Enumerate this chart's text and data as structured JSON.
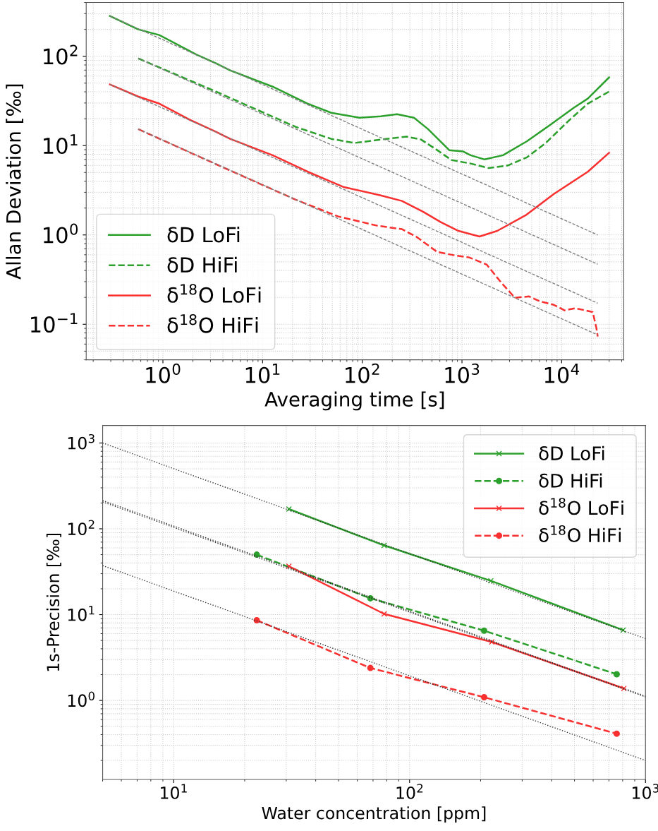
{
  "chart_data": [
    {
      "type": "line",
      "xlabel": "Averaging time [s]",
      "ylabel": "Allan Deviation [‰]",
      "log": "xy",
      "grid": true,
      "legend": "bottom left",
      "xlim": [
        0.17,
        42000
      ],
      "ylim": [
        0.04,
        400
      ],
      "xticks": [
        {
          "value": 1,
          "label": "10$^{0}$"
        },
        {
          "value": 10,
          "label": "10$^{1}$"
        },
        {
          "value": 100,
          "label": "10$^{2}$"
        },
        {
          "value": 1000,
          "label": "10$^{3}$"
        },
        {
          "value": 10000,
          "label": "10$^{4}$"
        }
      ],
      "yticks": [
        {
          "value": 0.1,
          "label": "10$^{−1}$"
        },
        {
          "value": 1,
          "label": "10$^{0}$"
        },
        {
          "value": 10,
          "label": "10$^{1}$"
        },
        {
          "value": 100,
          "label": "10$^{2}$"
        }
      ],
      "series": [
        {
          "type": "line",
          "color": "#808080",
          "line_style": "dashed",
          "x": [
            0.294,
            23000
          ],
          "values": [
            282,
            1.0
          ]
        },
        {
          "type": "line",
          "color": "#808080",
          "line_style": "dashed",
          "x": [
            0.565,
            23000
          ],
          "values": [
            94.6,
            0.47
          ]
        },
        {
          "type": "line",
          "color": "#808080",
          "line_style": "dashed",
          "x": [
            0.294,
            23000
          ],
          "values": [
            48.3,
            0.172
          ]
        },
        {
          "type": "line",
          "color": "#808080",
          "line_style": "dashed",
          "x": [
            0.565,
            23000
          ],
          "values": [
            15.3,
            0.076
          ]
        },
        {
          "type": "line",
          "name": "δD LoFi",
          "color": "#2ca02c",
          "line_style": "solid",
          "x": [
            0.294,
            0.565,
            0.92,
            2.19,
            3.4,
            4.72,
            12.6,
            28.4,
            48.8,
            93.7,
            153,
            223,
            330,
            457,
            745,
            1030,
            1220,
            1690,
            2580,
            4490,
            7700,
            13200,
            18300,
            29900
          ],
          "values": [
            282,
            200,
            173,
            104,
            83.4,
            69.5,
            45.7,
            29.5,
            23.3,
            20.5,
            21.3,
            22.5,
            20.5,
            15.3,
            8.9,
            8.6,
            7.8,
            7.0,
            7.8,
            11.2,
            17.1,
            26.5,
            33.6,
            58
          ]
        },
        {
          "type": "line",
          "name": "δD HiFi",
          "color": "#2ca02c",
          "line_style": "dashed",
          "x": [
            0.565,
            3.4,
            21.5,
            48.8,
            83.6,
            153,
            280,
            388,
            565,
            783,
            1220,
            1860,
            2890,
            4490,
            6930,
            12000,
            18300,
            29900
          ],
          "values": [
            94.6,
            40.3,
            16.2,
            11.9,
            10.7,
            11.7,
            12.6,
            11.7,
            8.9,
            6.9,
            6.3,
            5.6,
            6.0,
            7.4,
            10.7,
            19.4,
            29.5,
            40.3
          ]
        },
        {
          "type": "line",
          "name": "δ$^{18}$O LoFi",
          "color": "#f83030",
          "line_style": "solid",
          "x": [
            0.294,
            0.565,
            0.92,
            1.86,
            3.4,
            4.72,
            12.6,
            28.4,
            64.3,
            153,
            250,
            407,
            613,
            922,
            1500,
            2260,
            4350,
            8350,
            18300,
            29900
          ],
          "values": [
            48.3,
            35.4,
            29.5,
            19.5,
            14.3,
            11.9,
            7.8,
            5.1,
            3.45,
            2.77,
            2.4,
            1.82,
            1.39,
            1.11,
            0.96,
            1.11,
            1.66,
            2.87,
            5.1,
            8.3
          ]
        },
        {
          "type": "line",
          "name": "δ$^{18}$O HiFi",
          "color": "#f83030",
          "line_style": "dashed",
          "x": [
            0.565,
            3.4,
            21.5,
            57.4,
            141,
            250,
            346,
            565,
            849,
            1180,
            1770,
            2460,
            3400,
            4720,
            6030,
            8350,
            10700,
            13600,
            17400,
            20500,
            22300,
            23000
          ],
          "values": [
            15.3,
            6.2,
            2.48,
            1.61,
            1.27,
            1.16,
            0.96,
            0.645,
            0.59,
            0.56,
            0.466,
            0.295,
            0.198,
            0.205,
            0.181,
            0.165,
            0.143,
            0.151,
            0.143,
            0.137,
            0.091,
            0.073
          ]
        }
      ]
    },
    {
      "type": "line",
      "xlabel": "Water concentration [ppm]",
      "ylabel": "1s-Precision [‰]",
      "log": "xy",
      "grid": true,
      "legend": "top right",
      "xlim": [
        5,
        1000
      ],
      "ylim": [
        0.12,
        1600
      ],
      "xticks": [
        {
          "value": 10,
          "label": "10$^{1}$"
        },
        {
          "value": 100,
          "label": "10$^{2}$"
        },
        {
          "value": 1000,
          "label": "10$^{3}$"
        }
      ],
      "yticks": [
        {
          "value": 1,
          "label": "10$^{0}$"
        },
        {
          "value": 10,
          "label": "10$^{1}$"
        },
        {
          "value": 100,
          "label": "10$^{2}$"
        },
        {
          "value": 1000,
          "label": "10$^{3}$"
        }
      ],
      "series": [
        {
          "type": "line",
          "color": "#333333",
          "line_style": "dotted",
          "x": [
            5,
            1000
          ],
          "values": [
            1000,
            5.25
          ]
        },
        {
          "type": "line",
          "color": "#333333",
          "line_style": "dotted",
          "x": [
            5,
            1000
          ],
          "values": [
            206,
            1.1
          ]
        },
        {
          "type": "line",
          "color": "#333333",
          "line_style": "dotted",
          "x": [
            5,
            1000
          ],
          "values": [
            214,
            1.12
          ]
        },
        {
          "type": "line",
          "color": "#333333",
          "line_style": "dotted",
          "x": [
            5,
            1000
          ],
          "values": [
            37.3,
            0.2
          ]
        },
        {
          "type": "line",
          "name": "δD LoFi",
          "color": "#2ca02c",
          "line_style": "solid",
          "marker": "cross",
          "x": [
            30.8,
            78,
            221,
            804
          ],
          "values": [
            170,
            64,
            24.8,
            6.6
          ]
        },
        {
          "type": "line",
          "name": "δD HiFi",
          "color": "#2ca02c",
          "line_style": "dashed",
          "marker": "circle",
          "x": [
            22.5,
            68.2,
            207,
            755
          ],
          "values": [
            50,
            15.5,
            6.5,
            2.02
          ]
        },
        {
          "type": "line",
          "name": "δ$^{18}$O LoFi",
          "color": "#f83030",
          "line_style": "solid",
          "marker": "cross",
          "x": [
            30.8,
            78,
            223,
            810
          ],
          "values": [
            36.6,
            10.2,
            4.8,
            1.38
          ]
        },
        {
          "type": "line",
          "name": "δ$^{18}$O HiFi",
          "color": "#f83030",
          "line_style": "dashed",
          "marker": "circle",
          "x": [
            22.5,
            68.2,
            207,
            755
          ],
          "values": [
            8.6,
            2.39,
            1.09,
            0.41
          ]
        }
      ]
    }
  ]
}
